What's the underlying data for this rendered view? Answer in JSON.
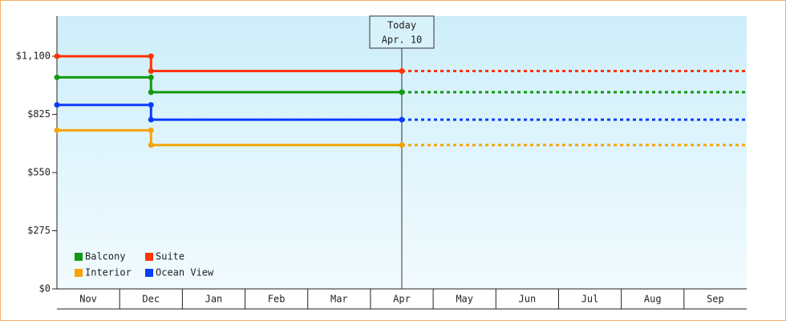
{
  "chart_data": {
    "type": "step-line",
    "categories": [
      "Nov",
      "Dec",
      "Jan",
      "Feb",
      "Mar",
      "Apr",
      "May",
      "Jun",
      "Jul",
      "Aug",
      "Sep"
    ],
    "series": [
      {
        "name": "Balcony",
        "color": "#119911",
        "values": [
          1000,
          930,
          930,
          930,
          930,
          930,
          930,
          930,
          930,
          930,
          930
        ]
      },
      {
        "name": "Suite",
        "color": "#ff3300",
        "values": [
          1100,
          1030,
          1030,
          1030,
          1030,
          1030,
          1030,
          1030,
          1030,
          1030,
          1030
        ]
      },
      {
        "name": "Interior",
        "color": "#f5a30a",
        "values": [
          750,
          680,
          680,
          680,
          680,
          680,
          680,
          680,
          680,
          680,
          680
        ]
      },
      {
        "name": "Ocean View",
        "color": "#0a3cff",
        "values": [
          870,
          800,
          800,
          800,
          800,
          800,
          800,
          800,
          800,
          800,
          800
        ]
      }
    ],
    "ylim": [
      0,
      1290
    ],
    "yticks": [
      {
        "value": 0,
        "label": "$0"
      },
      {
        "value": 275,
        "label": "$275"
      },
      {
        "value": 550,
        "label": "$550"
      },
      {
        "value": 825,
        "label": "$825"
      },
      {
        "value": 1100,
        "label": "$1,100"
      }
    ],
    "today": {
      "label": "Today",
      "date": "Apr. 10",
      "category": "Apr"
    },
    "legend": "lower-left"
  }
}
